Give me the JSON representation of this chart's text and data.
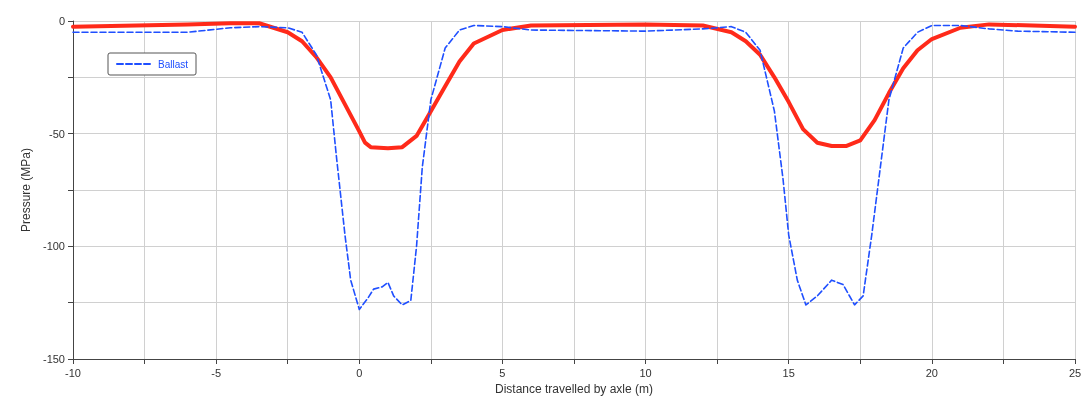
{
  "chart_data": {
    "type": "line",
    "xlabel": "Distance travelled by axle (m)",
    "ylabel": "Pressure (MPa)",
    "xlim": [
      -10,
      25
    ],
    "xticks": [
      -10,
      {
        "value": -7.5,
        "label": null
      },
      -5,
      {
        "value": -2.5,
        "label": null
      },
      0,
      {
        "value": 2.5,
        "label": null
      },
      5,
      {
        "value": 7.5,
        "label": null
      },
      10,
      {
        "value": 12.5,
        "label": null
      },
      15,
      {
        "value": 17.5,
        "label": null
      },
      20,
      {
        "value": 22.5,
        "label": null
      },
      25
    ],
    "ylim": [
      -150,
      0
    ],
    "yticks": [
      -150,
      {
        "value": -125,
        "label": null
      },
      -100,
      {
        "value": -75,
        "label": null
      },
      -50,
      {
        "value": -25,
        "label": null
      },
      0
    ],
    "grid": true,
    "legend": "top left",
    "marker": "none",
    "series": [
      {
        "color": "#ff2a1a",
        "line_style": "solid",
        "x": [
          -10,
          -6,
          -4.5,
          -3.5,
          -2.5,
          -2,
          -1.5,
          -1,
          -0.5,
          0,
          0.2,
          0.4,
          1,
          1.5,
          2,
          2.5,
          3,
          3.5,
          4,
          5,
          6,
          10,
          12,
          13,
          13.5,
          14,
          14.5,
          15,
          15.5,
          16,
          16.5,
          17,
          17.5,
          18,
          18.5,
          19,
          19.5,
          20,
          21,
          22,
          25
        ],
        "values": [
          -2.5,
          -1.5,
          -1,
          -1,
          -5,
          -9,
          -16,
          -25,
          -37,
          -49,
          -54,
          -56,
          -56.5,
          -56,
          -51,
          -40,
          -29,
          -18,
          -10,
          -4,
          -2,
          -1.5,
          -2,
          -5,
          -9,
          -15,
          -25,
          -36,
          -48,
          -54,
          -55.5,
          -55.5,
          -53,
          -44,
          -32,
          -21,
          -13,
          -8,
          -3,
          -1.5,
          -2.5
        ]
      },
      {
        "name": "Ballast",
        "color": "#1f4fff",
        "line_style": "dashed",
        "x": [
          -10,
          -6,
          -4.5,
          -3.5,
          -2.5,
          -2,
          -1.5,
          -1,
          -0.8,
          -0.5,
          -0.3,
          0,
          0.3,
          0.5,
          0.8,
          1,
          1.2,
          1.5,
          1.8,
          2,
          2.2,
          2.5,
          3,
          3.5,
          4,
          5,
          6,
          10,
          12,
          13,
          13.5,
          14,
          14.5,
          14.8,
          15,
          15.3,
          15.6,
          16,
          16.5,
          16.9,
          17.3,
          17.6,
          17.9,
          18.2,
          18.5,
          19,
          19.5,
          20,
          21,
          22,
          23,
          25
        ],
        "values": [
          -5,
          -5,
          -3,
          -2.5,
          -3,
          -5,
          -15,
          -35,
          -60,
          -95,
          -115,
          -128,
          -123,
          -119,
          -118,
          -116,
          -122,
          -126,
          -124,
          -100,
          -65,
          -35,
          -12,
          -4,
          -2,
          -2.5,
          -4,
          -4.5,
          -3.5,
          -2.5,
          -5,
          -13,
          -40,
          -70,
          -95,
          -115,
          -126,
          -122,
          -115,
          -117,
          -126,
          -122,
          -95,
          -65,
          -35,
          -12,
          -5,
          -2,
          -2,
          -3.5,
          -4.5,
          -5
        ]
      }
    ]
  }
}
